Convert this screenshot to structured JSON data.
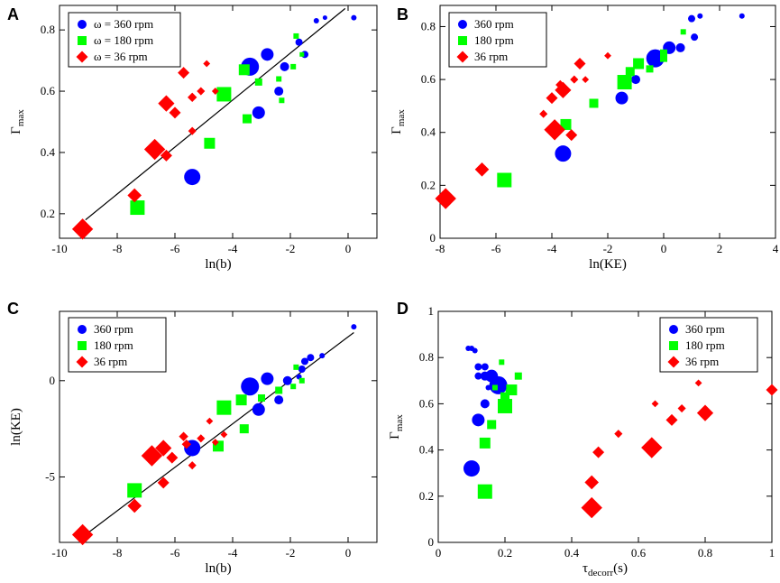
{
  "series_colors": {
    "s360": "#0000ff",
    "s180": "#00ff00",
    "s36": "#ff0000"
  },
  "chart_data": [
    {
      "panel": "A",
      "type": "scatter",
      "xlabel": "ln(b)",
      "ylabel": "Γ",
      "ylabel_sub": "max",
      "xlim": [
        -10,
        1
      ],
      "ylim": [
        0.12,
        0.88
      ],
      "xticks": [
        -10,
        -8,
        -6,
        -4,
        -2,
        0
      ],
      "yticks": [
        0.2,
        0.4,
        0.6,
        0.8
      ],
      "xtick_labels": [
        "-10",
        "-8",
        "-6",
        "-4",
        "-2",
        "0"
      ],
      "ytick_labels": [
        "0.2",
        "0.4",
        "0.6",
        "0.8"
      ],
      "legend_entries": [
        "ω = 360 rpm",
        "ω = 180 rpm",
        "ω = 36 rpm"
      ],
      "fit_line": [
        [
          -9.1,
          0.18
        ],
        [
          -0.1,
          0.87
        ]
      ],
      "series": [
        {
          "name": "ω = 360 rpm",
          "marker": "circle",
          "points": [
            [
              -5.4,
              0.32,
              9
            ],
            [
              -3.4,
              0.68,
              10
            ],
            [
              -3.1,
              0.53,
              7
            ],
            [
              -2.8,
              0.72,
              7
            ],
            [
              -2.4,
              0.6,
              5
            ],
            [
              -2.2,
              0.68,
              5
            ],
            [
              -1.7,
              0.76,
              4
            ],
            [
              -1.5,
              0.72,
              4
            ],
            [
              -1.1,
              0.83,
              3
            ],
            [
              -0.8,
              0.84,
              2.5
            ],
            [
              0.2,
              0.84,
              3
            ]
          ]
        },
        {
          "name": "ω = 180 rpm",
          "marker": "square",
          "points": [
            [
              -7.3,
              0.22,
              8
            ],
            [
              -4.8,
              0.43,
              6
            ],
            [
              -4.3,
              0.59,
              8
            ],
            [
              -3.6,
              0.67,
              6
            ],
            [
              -3.5,
              0.51,
              5
            ],
            [
              -3.1,
              0.63,
              4
            ],
            [
              -2.4,
              0.64,
              3
            ],
            [
              -2.3,
              0.57,
              3
            ],
            [
              -1.9,
              0.68,
              3
            ],
            [
              -1.8,
              0.78,
              3
            ],
            [
              -1.6,
              0.72,
              2.5
            ]
          ]
        },
        {
          "name": "ω = 36 rpm",
          "marker": "diamond",
          "points": [
            [
              -9.2,
              0.15,
              9
            ],
            [
              -7.4,
              0.26,
              6
            ],
            [
              -6.7,
              0.41,
              9
            ],
            [
              -6.3,
              0.39,
              5
            ],
            [
              -6.3,
              0.56,
              7
            ],
            [
              -6.0,
              0.53,
              5
            ],
            [
              -5.7,
              0.66,
              5
            ],
            [
              -5.4,
              0.47,
              3.5
            ],
            [
              -5.4,
              0.58,
              4
            ],
            [
              -5.1,
              0.6,
              3.5
            ],
            [
              -4.9,
              0.69,
              3
            ],
            [
              -4.6,
              0.6,
              3
            ]
          ]
        }
      ]
    },
    {
      "panel": "B",
      "type": "scatter",
      "xlabel": "ln(KE)",
      "ylabel": "Γ",
      "ylabel_sub": "max",
      "xlim": [
        -8,
        4
      ],
      "ylim": [
        0,
        0.88
      ],
      "xticks": [
        -8,
        -6,
        -4,
        -2,
        0,
        2,
        4
      ],
      "yticks": [
        0,
        0.2,
        0.4,
        0.6,
        0.8
      ],
      "xtick_labels": [
        "-8",
        "-6",
        "-4",
        "-2",
        "0",
        "2",
        "4"
      ],
      "ytick_labels": [
        "0",
        "0.2",
        "0.4",
        "0.6",
        "0.8"
      ],
      "legend_entries": [
        "360 rpm",
        "180 rpm",
        "36 rpm"
      ],
      "series": [
        {
          "name": "360 rpm",
          "marker": "circle",
          "points": [
            [
              -3.6,
              0.32,
              9
            ],
            [
              -1.5,
              0.53,
              7
            ],
            [
              -1.0,
              0.6,
              5
            ],
            [
              -0.3,
              0.68,
              10
            ],
            [
              0.2,
              0.72,
              7
            ],
            [
              0.6,
              0.72,
              5
            ],
            [
              1.0,
              0.83,
              4
            ],
            [
              1.1,
              0.76,
              4
            ],
            [
              1.3,
              0.84,
              3
            ],
            [
              2.8,
              0.84,
              3
            ]
          ]
        },
        {
          "name": "180 rpm",
          "marker": "square",
          "points": [
            [
              -5.7,
              0.22,
              8
            ],
            [
              -3.5,
              0.43,
              6
            ],
            [
              -1.4,
              0.59,
              8
            ],
            [
              -1.2,
              0.63,
              5
            ],
            [
              -0.9,
              0.66,
              6
            ],
            [
              -0.5,
              0.64,
              4
            ],
            [
              -2.5,
              0.51,
              5
            ],
            [
              0.0,
              0.68,
              4
            ],
            [
              0.0,
              0.7,
              4
            ],
            [
              0.7,
              0.78,
              3
            ]
          ]
        },
        {
          "name": "36 rpm",
          "marker": "diamond",
          "points": [
            [
              -7.8,
              0.15,
              9
            ],
            [
              -6.5,
              0.26,
              6
            ],
            [
              -3.9,
              0.41,
              9
            ],
            [
              -3.3,
              0.39,
              5
            ],
            [
              -3.6,
              0.56,
              7
            ],
            [
              -4.0,
              0.53,
              5
            ],
            [
              -3.0,
              0.66,
              5
            ],
            [
              -4.3,
              0.47,
              3.5
            ],
            [
              -3.7,
              0.58,
              4
            ],
            [
              -3.2,
              0.6,
              3.5
            ],
            [
              -2.0,
              0.69,
              3
            ],
            [
              -2.8,
              0.6,
              3
            ]
          ]
        }
      ]
    },
    {
      "panel": "C",
      "type": "scatter",
      "xlabel": "ln(b)",
      "ylabel": "ln(KE)",
      "xlim": [
        -10,
        1
      ],
      "ylim": [
        -8.4,
        3.6
      ],
      "xticks": [
        -10,
        -8,
        -6,
        -4,
        -2,
        0
      ],
      "yticks": [
        -5,
        0
      ],
      "xtick_labels": [
        "-10",
        "-8",
        "-6",
        "-4",
        "-2",
        "0"
      ],
      "ytick_labels": [
        "-5",
        "0"
      ],
      "legend_entries": [
        "360 rpm",
        "180 rpm",
        "36 rpm"
      ],
      "fit_line": [
        [
          -9.1,
          -8.0
        ],
        [
          0.2,
          2.5
        ]
      ],
      "series": [
        {
          "name": "360 rpm",
          "marker": "circle",
          "points": [
            [
              -5.4,
              -3.5,
              9
            ],
            [
              -3.4,
              -0.3,
              10
            ],
            [
              -3.1,
              -1.5,
              7
            ],
            [
              -2.8,
              0.1,
              7
            ],
            [
              -2.4,
              -1.0,
              5
            ],
            [
              -2.1,
              0.0,
              5
            ],
            [
              -1.5,
              1.0,
              4
            ],
            [
              -1.3,
              1.2,
              4
            ],
            [
              -1.6,
              0.6,
              4
            ],
            [
              -0.9,
              1.3,
              3
            ],
            [
              0.2,
              2.8,
              3
            ],
            [
              -1.7,
              0.2,
              3
            ]
          ]
        },
        {
          "name": "180 rpm",
          "marker": "square",
          "points": [
            [
              -7.4,
              -5.7,
              8
            ],
            [
              -4.3,
              -1.4,
              8
            ],
            [
              -4.5,
              -3.4,
              6
            ],
            [
              -3.7,
              -1.0,
              6
            ],
            [
              -3.6,
              -2.5,
              5
            ],
            [
              -3.0,
              -0.9,
              4
            ],
            [
              -2.4,
              -0.5,
              4
            ],
            [
              -1.9,
              -0.3,
              3
            ],
            [
              -1.8,
              0.7,
              3
            ],
            [
              -1.6,
              0.0,
              3
            ]
          ]
        },
        {
          "name": "36 rpm",
          "marker": "diamond",
          "points": [
            [
              -9.2,
              -8.0,
              9
            ],
            [
              -7.4,
              -6.5,
              6
            ],
            [
              -6.8,
              -3.9,
              9
            ],
            [
              -6.4,
              -3.5,
              7
            ],
            [
              -6.4,
              -5.3,
              5
            ],
            [
              -6.1,
              -4.0,
              5
            ],
            [
              -5.7,
              -2.9,
              4
            ],
            [
              -5.6,
              -3.3,
              4
            ],
            [
              -5.4,
              -4.4,
              3.5
            ],
            [
              -5.1,
              -3.0,
              3.5
            ],
            [
              -4.8,
              -2.1,
              3
            ],
            [
              -4.6,
              -3.2,
              3
            ],
            [
              -4.3,
              -2.8,
              3
            ]
          ]
        }
      ]
    },
    {
      "panel": "D",
      "type": "scatter",
      "xlabel": "τ",
      "xlabel_sub": "decorr",
      "xlabel_suffix": "(s)",
      "ylabel": "Γ",
      "ylabel_sub": "max",
      "xlim": [
        0,
        1
      ],
      "ylim": [
        0,
        1
      ],
      "xticks": [
        0,
        0.2,
        0.4,
        0.6,
        0.8,
        1
      ],
      "yticks": [
        0,
        0.2,
        0.4,
        0.6,
        0.8,
        1
      ],
      "xtick_labels": [
        "0",
        "0.2",
        "0.4",
        "0.6",
        "0.8",
        "1"
      ],
      "ytick_labels": [
        "0",
        "0.2",
        "0.4",
        "0.6",
        "0.8",
        "1"
      ],
      "legend_entries": [
        "360 rpm",
        "180 rpm",
        "36 rpm"
      ],
      "series": [
        {
          "name": "360 rpm",
          "marker": "circle",
          "points": [
            [
              0.1,
              0.32,
              9
            ],
            [
              0.12,
              0.53,
              7
            ],
            [
              0.14,
              0.6,
              5
            ],
            [
              0.18,
              0.68,
              10
            ],
            [
              0.16,
              0.72,
              7
            ],
            [
              0.14,
              0.72,
              5
            ],
            [
              0.14,
              0.76,
              4
            ],
            [
              0.12,
              0.76,
              4
            ],
            [
              0.11,
              0.83,
              3
            ],
            [
              0.1,
              0.84,
              3
            ],
            [
              0.09,
              0.84,
              3
            ],
            [
              0.12,
              0.72,
              4
            ],
            [
              0.15,
              0.67,
              3
            ]
          ]
        },
        {
          "name": "180 rpm",
          "marker": "square",
          "points": [
            [
              0.14,
              0.22,
              8
            ],
            [
              0.14,
              0.43,
              6
            ],
            [
              0.2,
              0.59,
              8
            ],
            [
              0.2,
              0.63,
              5
            ],
            [
              0.22,
              0.66,
              6
            ],
            [
              0.16,
              0.51,
              5
            ],
            [
              0.24,
              0.72,
              4
            ],
            [
              0.19,
              0.78,
              3
            ],
            [
              0.17,
              0.67,
              3
            ],
            [
              0.21,
              0.65,
              3
            ]
          ]
        },
        {
          "name": "36 rpm",
          "marker": "diamond",
          "points": [
            [
              0.46,
              0.15,
              9
            ],
            [
              0.46,
              0.26,
              6
            ],
            [
              0.64,
              0.41,
              9
            ],
            [
              0.48,
              0.39,
              5
            ],
            [
              0.8,
              0.56,
              7
            ],
            [
              0.7,
              0.53,
              5
            ],
            [
              1.0,
              0.66,
              5
            ],
            [
              0.54,
              0.47,
              3.5
            ],
            [
              0.73,
              0.58,
              3.5
            ],
            [
              0.65,
              0.6,
              3
            ],
            [
              0.78,
              0.69,
              3
            ]
          ]
        }
      ]
    }
  ]
}
